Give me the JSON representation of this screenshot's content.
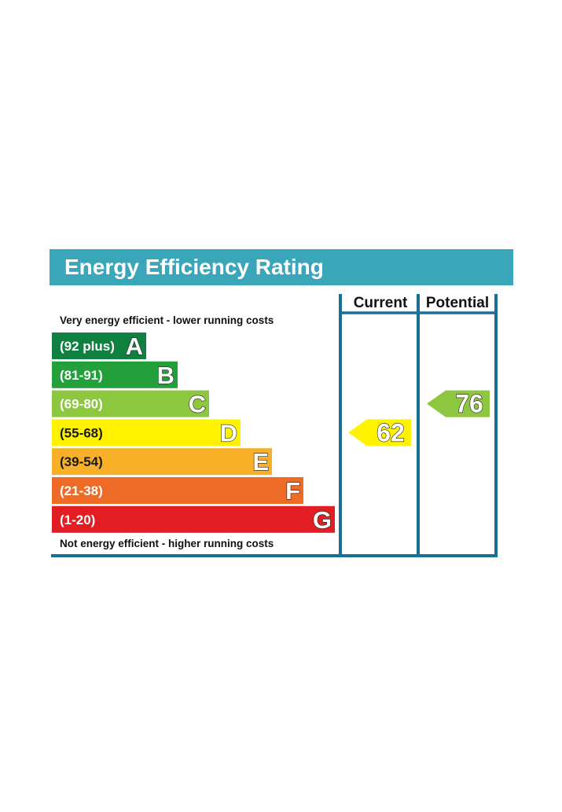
{
  "chart_data": {
    "type": "bar",
    "title": "Energy Efficiency Rating",
    "top_note": "Very energy efficient - lower running costs",
    "bottom_note": "Not energy efficient - higher running costs",
    "bands": [
      {
        "letter": "A",
        "range": "(92 plus)",
        "color": "#0f8040"
      },
      {
        "letter": "B",
        "range": "(81-91)",
        "color": "#23a03c"
      },
      {
        "letter": "C",
        "range": "(69-80)",
        "color": "#8dc63f"
      },
      {
        "letter": "D",
        "range": "(55-68)",
        "color": "#fff200"
      },
      {
        "letter": "E",
        "range": "(39-54)",
        "color": "#f7b028"
      },
      {
        "letter": "F",
        "range": "(21-38)",
        "color": "#ed6b27"
      },
      {
        "letter": "G",
        "range": "(1-20)",
        "color": "#e21d24"
      }
    ],
    "columns": [
      {
        "label": "Current",
        "value": "62",
        "band": "D",
        "color": "#fff200"
      },
      {
        "label": "Potential",
        "value": "76",
        "band": "C",
        "color": "#8dc63f"
      }
    ],
    "colors": {
      "title_bar": "#3aa6b9",
      "frame": "#1a6f94"
    }
  }
}
